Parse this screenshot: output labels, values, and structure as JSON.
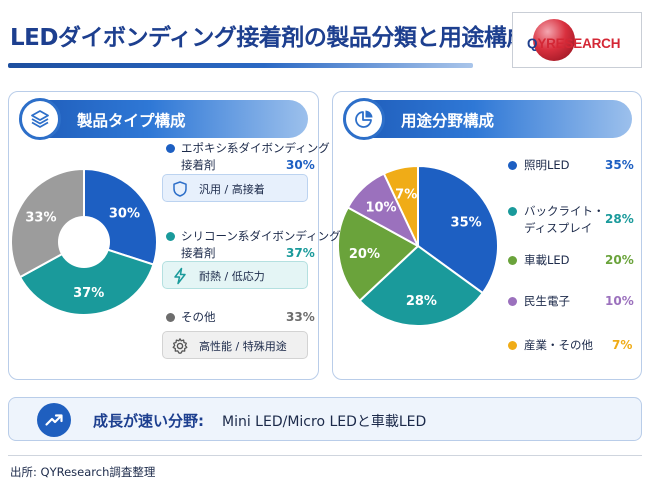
{
  "header": {
    "title": "LEDダイボンディング接着剤の製品分類と用途構成",
    "logo_text": "QYRESEARCH"
  },
  "product_panel": {
    "heading": "製品タイプ構成",
    "icon": "layers-icon"
  },
  "application_panel": {
    "heading": "用途分野構成",
    "icon": "pie-chart-icon"
  },
  "chart_data": [
    {
      "type": "pie",
      "title": "製品タイプ構成",
      "categories": [
        "エポキシ系ダイボンディング接着剤",
        "シリコーン系ダイボンディング接着剤",
        "その他"
      ],
      "values": [
        30,
        37,
        33
      ],
      "value_labels": [
        "30%",
        "37%",
        "33%"
      ],
      "colors": [
        "#1d5fc2",
        "#1a9a9b",
        "#9c9c9c"
      ],
      "donut": true,
      "legend": [
        {
          "name_line1": "エポキシ系ダイボンディング",
          "name_line2": "接着剤",
          "pct": "30%",
          "color": "#1d5fc2",
          "feature": "汎用 / 高接着",
          "feature_icon": "shield-icon",
          "feature_bg": "#e7f0fc",
          "feature_border": "#bcd3f0"
        },
        {
          "name_line1": "シリコーン系ダイボンディング",
          "name_line2": "接着剤",
          "pct": "37%",
          "color": "#1a9a9b",
          "feature": "耐熱 / 低応力",
          "feature_icon": "lightning-icon",
          "feature_bg": "#e4f5f5",
          "feature_border": "#b4e0e0"
        },
        {
          "name_line1": "その他",
          "name_line2": "",
          "pct": "33%",
          "color": "#6d6d6d",
          "feature": "高性能 / 特殊用途",
          "feature_icon": "gear-icon",
          "feature_bg": "#f0f0f0",
          "feature_border": "#d3d3d3"
        }
      ]
    },
    {
      "type": "pie",
      "title": "用途分野構成",
      "categories": [
        "照明LED",
        "バックライト・ディスプレイ",
        "車載LED",
        "民生電子",
        "産業・その他"
      ],
      "values": [
        35,
        28,
        20,
        10,
        7
      ],
      "value_labels": [
        "35%",
        "28%",
        "20%",
        "10%",
        "7%"
      ],
      "colors": [
        "#1d5fc2",
        "#1a9a9b",
        "#6aa33b",
        "#9b71bd",
        "#f0ac17"
      ],
      "donut": false,
      "legend": [
        {
          "name_line1": "照明LED",
          "name_line2": "",
          "pct": "35%",
          "color": "#1d5fc2"
        },
        {
          "name_line1": "バックライト・",
          "name_line2": "ディスプレイ",
          "pct": "28%",
          "color": "#1a9a9b"
        },
        {
          "name_line1": "車載LED",
          "name_line2": "",
          "pct": "20%",
          "color": "#6aa33b"
        },
        {
          "name_line1": "民生電子",
          "name_line2": "",
          "pct": "10%",
          "color": "#9b71bd"
        },
        {
          "name_line1": "産業・その他",
          "name_line2": "",
          "pct": "7%",
          "color": "#f0ac17"
        }
      ]
    }
  ],
  "growth": {
    "label": "成長が速い分野:",
    "value": "Mini LED/Micro LEDと車載LED",
    "icon": "trending-up-icon"
  },
  "footer": {
    "source": "出所: QYResearch調査整理"
  }
}
